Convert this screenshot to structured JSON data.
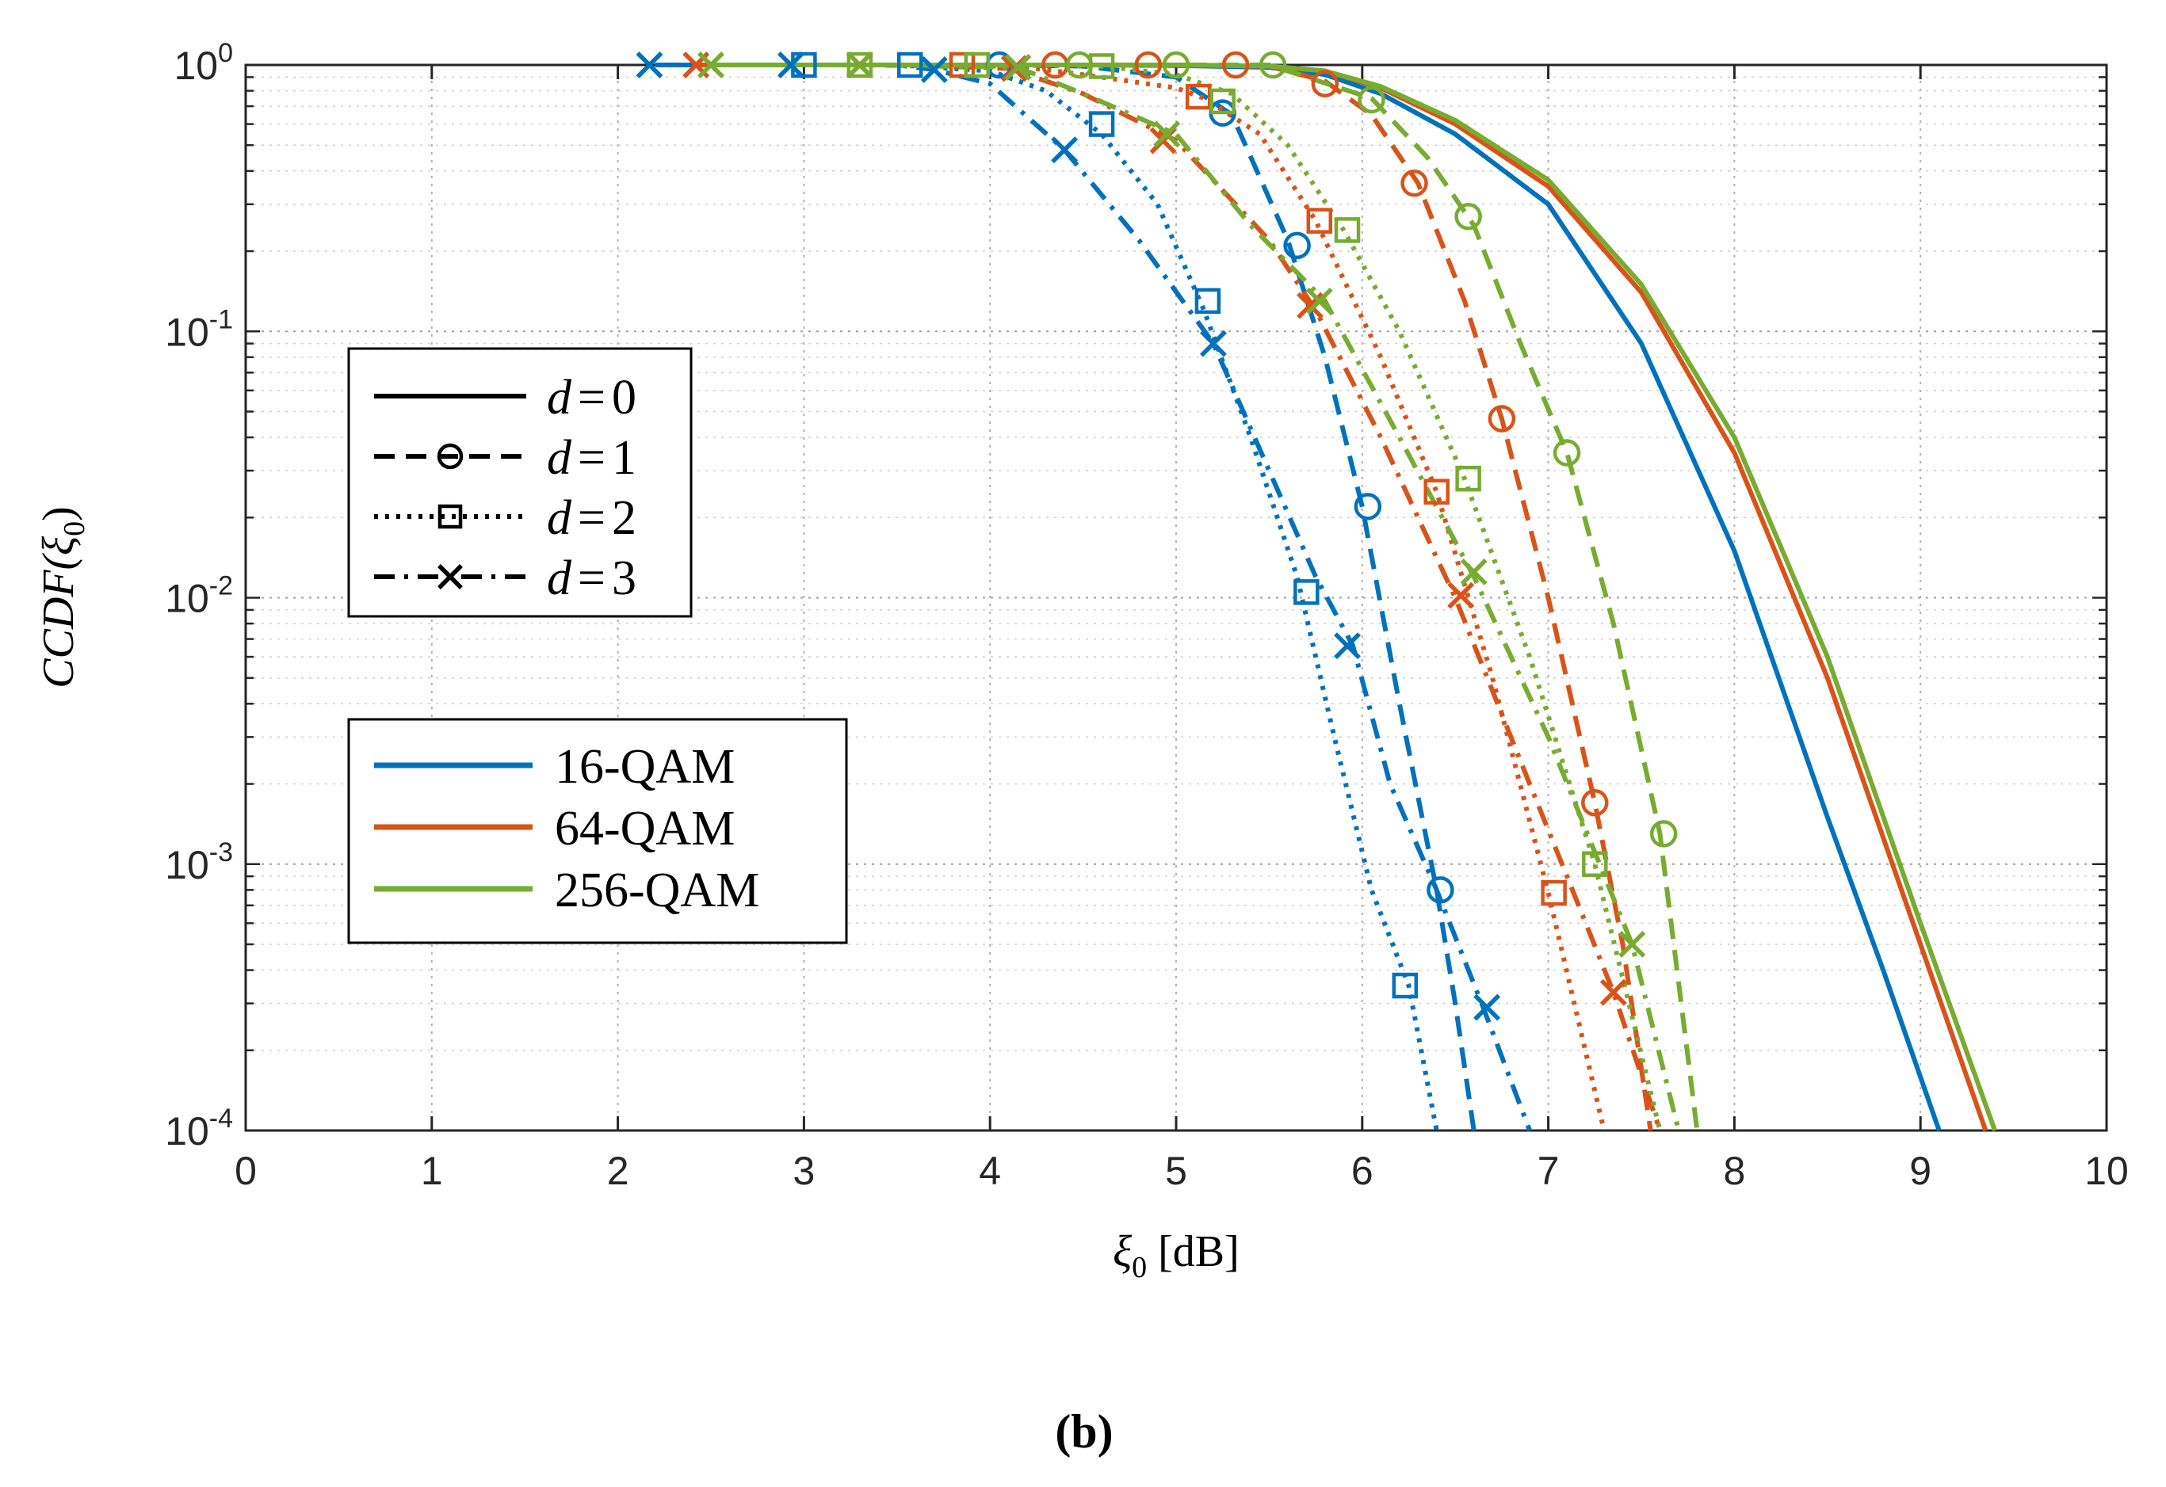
{
  "chart_data": {
    "type": "line",
    "yscale": "log",
    "xlabel": {
      "symbol": "ξ",
      "sub": "0",
      "unit": "[dB]"
    },
    "ylabel": {
      "prefix": "CCDF(",
      "symbol": "ξ",
      "sub": "0",
      "suffix": ")"
    },
    "xlim": [
      0,
      10
    ],
    "ylim": [
      0.0001,
      1
    ],
    "x_ticks": [
      "0",
      "1",
      "2",
      "3",
      "4",
      "5",
      "6",
      "7",
      "8",
      "9",
      "10"
    ],
    "y_ticks": [
      {
        "base": "10",
        "exp": "0",
        "value": 1
      },
      {
        "base": "10",
        "exp": "-1",
        "value": 0.1
      },
      {
        "base": "10",
        "exp": "-2",
        "value": 0.01
      },
      {
        "base": "10",
        "exp": "-3",
        "value": 0.001
      },
      {
        "base": "10",
        "exp": "-4",
        "value": 0.0001
      }
    ],
    "grid": true,
    "caption": "(b)",
    "colors": {
      "16-QAM": "#0072BD",
      "64-QAM": "#D95319",
      "256-QAM": "#77AC30"
    },
    "legend_d": [
      {
        "label": "d = 0",
        "var": "d",
        "eq": "=",
        "num": "0",
        "style": "solid",
        "marker": "none"
      },
      {
        "label": "d = 1",
        "var": "d",
        "eq": "=",
        "num": "1",
        "style": "dashed",
        "marker": "circle"
      },
      {
        "label": "d = 2",
        "var": "d",
        "eq": "=",
        "num": "2",
        "style": "dotted",
        "marker": "square"
      },
      {
        "label": "d = 3",
        "var": "d",
        "eq": "=",
        "num": "3",
        "style": "dashdot",
        "marker": "x"
      }
    ],
    "legend_mod": [
      "16-QAM",
      "64-QAM",
      "256-QAM"
    ],
    "series": [
      {
        "mod": "16-QAM",
        "d": 0,
        "style": "solid",
        "marker": "none",
        "x": [
          2.2,
          3.0,
          3.5,
          4.0,
          4.5,
          5.0,
          5.5,
          5.8,
          6.1,
          6.5,
          7.0,
          7.5,
          8.0,
          8.5,
          8.8,
          9.1
        ],
        "y": [
          1,
          1,
          1,
          1,
          1,
          0.995,
          0.98,
          0.92,
          0.78,
          0.55,
          0.3,
          0.09,
          0.015,
          0.0015,
          0.0004,
          0.0001
        ],
        "marker_x": [],
        "marker_y": []
      },
      {
        "mod": "16-QAM",
        "d": 1,
        "style": "dashed",
        "marker": "circle",
        "x": [
          2.2,
          3.0,
          3.5,
          4.0,
          4.5,
          5.0,
          5.3,
          5.6,
          5.8,
          6.0,
          6.2,
          6.4,
          6.5,
          6.6
        ],
        "y": [
          1,
          1,
          1,
          1,
          0.99,
          0.9,
          0.65,
          0.22,
          0.08,
          0.022,
          0.004,
          0.0008,
          0.0003,
          0.0001
        ],
        "marker_x": [
          4.05,
          5.25,
          5.65,
          6.03,
          6.42
        ],
        "marker_y": [
          1.0,
          0.66,
          0.21,
          0.022,
          0.0008
        ]
      },
      {
        "mod": "16-QAM",
        "d": 2,
        "style": "dotted",
        "marker": "square",
        "x": [
          2.2,
          3.0,
          3.5,
          4.0,
          4.3,
          4.6,
          4.9,
          5.15,
          5.4,
          5.65,
          5.85,
          6.05,
          6.25,
          6.4
        ],
        "y": [
          1,
          1,
          1,
          0.95,
          0.8,
          0.55,
          0.3,
          0.12,
          0.04,
          0.012,
          0.003,
          0.0008,
          0.00035,
          0.0001
        ],
        "marker_x": [
          3.0,
          3.57,
          4.6,
          5.17,
          5.7,
          6.23
        ],
        "marker_y": [
          1.0,
          1.0,
          0.6,
          0.13,
          0.0105,
          0.00035
        ]
      },
      {
        "mod": "16-QAM",
        "d": 3,
        "style": "dashdot",
        "marker": "x",
        "x": [
          2.2,
          3.0,
          3.5,
          3.7,
          4.0,
          4.4,
          4.8,
          5.2,
          5.5,
          5.75,
          5.95,
          6.15,
          6.4,
          6.65,
          6.9
        ],
        "y": [
          1,
          1,
          1,
          0.96,
          0.85,
          0.48,
          0.22,
          0.09,
          0.03,
          0.012,
          0.0066,
          0.002,
          0.0008,
          0.00029,
          0.0001
        ],
        "marker_x": [
          2.17,
          2.93,
          3.7,
          4.4,
          5.2,
          5.92,
          6.67
        ],
        "marker_y": [
          1.0,
          1.0,
          0.96,
          0.48,
          0.09,
          0.0066,
          0.00029
        ]
      },
      {
        "mod": "64-QAM",
        "d": 0,
        "style": "solid",
        "marker": "none",
        "x": [
          2.4,
          3.0,
          4.0,
          5.0,
          5.5,
          5.8,
          6.1,
          6.5,
          7.0,
          7.5,
          8.0,
          8.5,
          9.0,
          9.35
        ],
        "y": [
          1,
          1,
          1,
          1,
          0.99,
          0.95,
          0.82,
          0.6,
          0.35,
          0.14,
          0.035,
          0.005,
          0.0005,
          0.0001
        ],
        "marker_x": [],
        "marker_y": []
      },
      {
        "mod": "64-QAM",
        "d": 1,
        "style": "dashed",
        "marker": "circle",
        "x": [
          2.4,
          3.0,
          4.0,
          4.5,
          5.0,
          5.5,
          5.8,
          6.05,
          6.3,
          6.55,
          6.75,
          7.0,
          7.25,
          7.4,
          7.55
        ],
        "y": [
          1,
          1,
          1,
          1,
          1,
          0.99,
          0.87,
          0.65,
          0.36,
          0.13,
          0.047,
          0.01,
          0.0017,
          0.0005,
          0.0001
        ],
        "marker_x": [
          4.35,
          4.85,
          5.32,
          5.8,
          6.28,
          6.75,
          7.25
        ],
        "marker_y": [
          1.0,
          1.0,
          1.0,
          0.85,
          0.36,
          0.047,
          0.0017
        ]
      },
      {
        "mod": "64-QAM",
        "d": 2,
        "style": "dotted",
        "marker": "square",
        "x": [
          2.4,
          3.0,
          3.5,
          3.85,
          4.2,
          4.6,
          5.0,
          5.15,
          5.45,
          5.75,
          6.1,
          6.4,
          6.7,
          7.0,
          7.3
        ],
        "y": [
          1,
          1,
          1,
          1,
          0.98,
          0.9,
          0.82,
          0.75,
          0.55,
          0.26,
          0.08,
          0.025,
          0.005,
          0.00078,
          0.0001
        ],
        "marker_x": [
          3.85,
          5.12,
          5.77,
          6.4,
          7.03
        ],
        "marker_y": [
          1.0,
          0.76,
          0.26,
          0.025,
          0.00078
        ]
      },
      {
        "mod": "64-QAM",
        "d": 3,
        "style": "dashdot",
        "marker": "x",
        "x": [
          2.4,
          3.0,
          3.5,
          4.1,
          4.5,
          5.0,
          5.5,
          5.75,
          6.1,
          6.5,
          6.9,
          7.1,
          7.35,
          7.6
        ],
        "y": [
          1,
          1,
          1,
          0.97,
          0.78,
          0.52,
          0.22,
          0.12,
          0.04,
          0.01,
          0.002,
          0.0009,
          0.00033,
          0.0001
        ],
        "marker_x": [
          2.42,
          3.3,
          4.13,
          4.93,
          5.72,
          6.53,
          7.35
        ],
        "marker_y": [
          1.0,
          1.0,
          0.97,
          0.52,
          0.125,
          0.0102,
          0.00033
        ]
      },
      {
        "mod": "256-QAM",
        "d": 0,
        "style": "solid",
        "marker": "none",
        "x": [
          2.5,
          3.0,
          4.0,
          5.0,
          5.5,
          5.8,
          6.1,
          6.5,
          7.0,
          7.5,
          8.0,
          8.5,
          9.0,
          9.4
        ],
        "y": [
          1,
          1,
          1,
          1,
          0.99,
          0.95,
          0.83,
          0.62,
          0.37,
          0.15,
          0.04,
          0.006,
          0.0006,
          0.0001
        ],
        "marker_x": [],
        "marker_y": []
      },
      {
        "mod": "256-QAM",
        "d": 1,
        "style": "dashed",
        "marker": "circle",
        "x": [
          2.5,
          3.0,
          4.0,
          4.5,
          5.0,
          5.5,
          6.05,
          6.35,
          6.6,
          6.85,
          7.1,
          7.35,
          7.6,
          7.8
        ],
        "y": [
          1,
          1,
          1,
          1,
          1,
          1,
          0.75,
          0.45,
          0.25,
          0.09,
          0.035,
          0.008,
          0.0013,
          0.0001
        ],
        "marker_x": [
          4.48,
          5.0,
          5.52,
          6.05,
          6.57,
          7.1,
          7.62
        ],
        "marker_y": [
          1.0,
          1.0,
          1.0,
          0.74,
          0.27,
          0.035,
          0.0013
        ]
      },
      {
        "mod": "256-QAM",
        "d": 2,
        "style": "dotted",
        "marker": "square",
        "x": [
          2.5,
          3.0,
          3.3,
          4.0,
          4.6,
          5.0,
          5.3,
          5.6,
          5.9,
          6.2,
          6.55,
          6.9,
          7.25,
          7.6
        ],
        "y": [
          1,
          1,
          1,
          1,
          0.99,
          0.92,
          0.78,
          0.5,
          0.24,
          0.1,
          0.028,
          0.006,
          0.001,
          0.0001
        ],
        "marker_x": [
          3.3,
          3.93,
          4.6,
          5.25,
          5.92,
          6.57,
          7.25
        ],
        "marker_y": [
          1.0,
          1.0,
          0.99,
          0.73,
          0.24,
          0.028,
          0.001
        ]
      },
      {
        "mod": "256-QAM",
        "d": 3,
        "style": "dashdot",
        "marker": "x",
        "x": [
          2.5,
          3.0,
          3.3,
          4.15,
          4.5,
          5.0,
          5.4,
          5.8,
          6.2,
          6.6,
          7.0,
          7.45,
          7.7
        ],
        "y": [
          1,
          1,
          1,
          0.98,
          0.78,
          0.55,
          0.25,
          0.13,
          0.04,
          0.012,
          0.003,
          0.0005,
          0.0001
        ],
        "marker_x": [
          2.5,
          3.3,
          4.15,
          4.95,
          5.77,
          6.6,
          7.45
        ],
        "marker_y": [
          1.0,
          1.0,
          0.98,
          0.55,
          0.13,
          0.0125,
          0.0005
        ]
      }
    ]
  }
}
